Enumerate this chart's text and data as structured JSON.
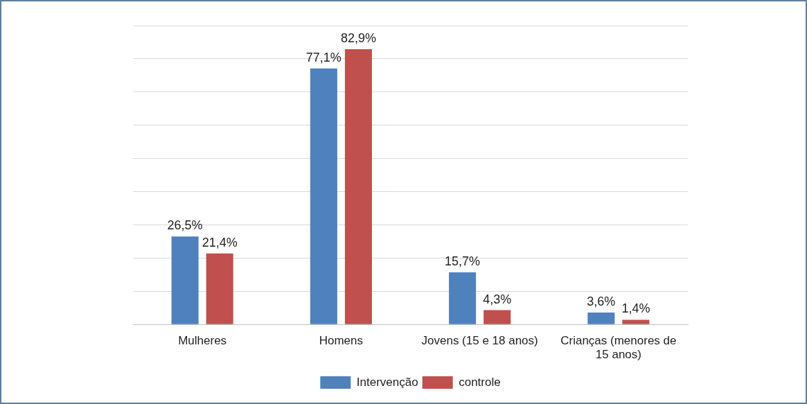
{
  "chart_data": {
    "type": "bar",
    "categories": [
      "Mulheres",
      "Homens",
      "Jovens (15 e 18 anos)",
      "Crianças (menores de 15 anos)"
    ],
    "series": [
      {
        "name": "Intervenção",
        "color": "#4f81bd",
        "values": [
          26.5,
          77.1,
          15.7,
          3.6
        ],
        "value_labels": [
          "26,5%",
          "77,1%",
          "15,7%",
          "3,6%"
        ]
      },
      {
        "name": "controle",
        "color": "#c0504d",
        "values": [
          21.4,
          82.9,
          4.3,
          1.4
        ],
        "value_labels": [
          "21,4%",
          "82,9%",
          "4,3%",
          "1,4%"
        ]
      }
    ],
    "ylim": [
      0,
      90
    ],
    "yticks": [
      {
        "value": 0,
        "label": null
      },
      {
        "value": 10,
        "label": null
      },
      {
        "value": 20,
        "label": null
      },
      {
        "value": 30,
        "label": null
      },
      {
        "value": 40,
        "label": null
      },
      {
        "value": 50,
        "label": null
      },
      {
        "value": 60,
        "label": null
      },
      {
        "value": 70,
        "label": null
      },
      {
        "value": 80,
        "label": null
      },
      {
        "value": 90,
        "label": null
      }
    ],
    "grid": "y",
    "tick_labels": "x",
    "legend": "bottom"
  }
}
